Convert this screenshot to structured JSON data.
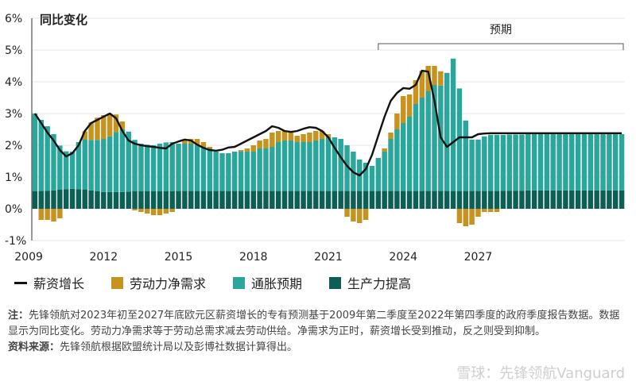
{
  "chart_data": {
    "type": "bar",
    "ylabel": "同比变化",
    "forecast_label": "预期",
    "ylim": [
      -1,
      6
    ],
    "yticks": [
      "6%",
      "5%",
      "4%",
      "3%",
      "2%",
      "1%",
      "0%",
      "-1%"
    ],
    "xticks": [
      "2009",
      "2012",
      "2015",
      "2018",
      "2021",
      "2024",
      "2027"
    ],
    "x_start": "2009Q2",
    "legend": {
      "wage": "薪资增长",
      "labor": "劳动力净需求",
      "infl": "通胀预期",
      "prod": "生产力提高"
    },
    "colors": {
      "prod": "#0b5f54",
      "infl": "#2aa79c",
      "labor": "#c8921f",
      "wage": "#111111"
    },
    "series": {
      "prod": [
        0.55,
        0.56,
        0.57,
        0.58,
        0.6,
        0.62,
        0.63,
        0.62,
        0.61,
        0.58,
        0.55,
        0.53,
        0.53,
        0.53,
        0.53,
        0.54,
        0.55,
        0.55,
        0.55,
        0.55,
        0.55,
        0.55,
        0.55,
        0.56,
        0.56,
        0.56,
        0.56,
        0.56,
        0.56,
        0.56,
        0.56,
        0.56,
        0.56,
        0.56,
        0.56,
        0.56,
        0.56,
        0.56,
        0.56,
        0.56,
        0.56,
        0.56,
        0.56,
        0.56,
        0.56,
        0.56,
        0.56,
        0.56,
        0.56,
        0.56,
        0.56,
        0.56,
        0.56,
        0.56,
        0.56,
        0.56,
        0.56,
        0.56,
        0.56,
        0.56,
        0.56,
        0.56,
        0.56,
        0.56,
        0.56,
        0.56,
        0.56,
        0.56,
        0.56,
        0.56,
        0.56,
        0.56,
        0.56,
        0.56,
        0.56,
        0.57,
        0.57,
        0.57,
        0.57,
        0.58,
        0.58,
        0.58,
        0.58,
        0.58,
        0.58,
        0.58,
        0.58,
        0.58,
        0.58,
        0.58,
        0.58,
        0.58,
        0.58,
        0.58,
        0.58
      ],
      "infl": [
        2.45,
        2.24,
        2.03,
        1.77,
        1.39,
        1.19,
        1.17,
        1.48,
        1.58,
        1.59,
        1.62,
        1.67,
        1.75,
        1.89,
        1.97,
        1.89,
        1.62,
        1.5,
        1.47,
        1.45,
        1.5,
        1.54,
        1.55,
        1.49,
        1.49,
        1.49,
        1.44,
        1.39,
        1.34,
        1.24,
        1.19,
        1.19,
        1.24,
        1.24,
        1.24,
        1.24,
        1.34,
        1.34,
        1.39,
        1.54,
        1.59,
        1.59,
        1.54,
        1.54,
        1.54,
        1.59,
        1.64,
        1.69,
        1.69,
        1.64,
        1.44,
        1.24,
        0.99,
        0.89,
        0.79,
        1.04,
        1.24,
        1.64,
        1.94,
        2.14,
        2.34,
        2.74,
        2.94,
        3.14,
        3.34,
        3.32,
        3.72,
        4.17,
        3.23,
        2.22,
        1.62,
        1.62,
        1.72,
        1.77,
        1.77,
        1.76,
        1.77,
        1.77,
        1.77,
        1.77,
        1.77,
        1.77,
        1.77,
        1.77,
        1.77,
        1.77,
        1.77,
        1.77,
        1.77,
        1.77,
        1.77,
        1.77,
        1.77,
        1.77,
        1.77
      ],
      "labor": [
        0,
        -0.35,
        -0.35,
        -0.4,
        -0.3,
        0,
        0,
        0,
        0.25,
        0.55,
        0.7,
        0.75,
        0.7,
        0.55,
        0.25,
        0,
        -0.05,
        -0.1,
        -0.15,
        -0.2,
        -0.2,
        -0.15,
        -0.1,
        0,
        0.1,
        0.15,
        0.2,
        0.15,
        0.05,
        0,
        0,
        0,
        0,
        0.05,
        0.1,
        0.2,
        0.25,
        0.3,
        0.45,
        0.35,
        0.3,
        0.25,
        0.2,
        0.25,
        0.3,
        0.3,
        0.25,
        0.1,
        0,
        0,
        -0.25,
        -0.4,
        -0.45,
        -0.35,
        0,
        0,
        0.1,
        0.2,
        0.5,
        0.85,
        0.7,
        0.75,
        0.85,
        0.8,
        0.6,
        0.45,
        0,
        0,
        -0.45,
        -0.55,
        -0.5,
        -0.25,
        -0.1,
        -0.1,
        -0.1,
        0,
        0,
        0,
        0,
        0,
        0,
        0,
        0,
        0,
        0,
        0,
        0,
        0,
        0,
        0,
        0,
        0,
        0,
        0,
        0
      ],
      "wage": [
        3.0,
        2.7,
        2.4,
        2.15,
        1.85,
        1.65,
        1.75,
        2.0,
        2.45,
        2.7,
        2.8,
        2.9,
        3.0,
        2.85,
        2.45,
        2.15,
        2.05,
        2.0,
        1.97,
        1.95,
        1.92,
        1.9,
        2.05,
        2.12,
        2.18,
        2.15,
        2.02,
        1.92,
        1.85,
        1.83,
        1.86,
        1.93,
        1.95,
        2.05,
        2.15,
        2.25,
        2.35,
        2.45,
        2.6,
        2.55,
        2.45,
        2.42,
        2.45,
        2.52,
        2.57,
        2.55,
        2.45,
        2.25,
        1.92,
        1.62,
        1.35,
        1.15,
        1.05,
        1.25,
        1.7,
        2.3,
        2.9,
        3.4,
        3.65,
        3.8,
        3.78,
        3.9,
        4.35,
        4.32,
        3.4,
        2.25,
        1.95,
        2.1,
        2.25,
        2.25,
        2.25,
        2.35,
        2.37,
        2.38,
        2.38,
        2.38,
        2.38,
        2.38,
        2.38,
        2.38,
        2.38,
        2.38,
        2.38,
        2.38,
        2.38,
        2.38,
        2.38,
        2.38,
        2.38,
        2.38,
        2.38,
        2.38,
        2.38,
        2.38,
        2.38
      ]
    }
  },
  "note": {
    "label": "注：",
    "text": "先锋领航对2023年初至2027年底欧元区薪资增长的专有预测基于2009年第二季度至2022年第四季度的政府季度报告数据。数据显示为同比变化。劳动力净需求等于劳动总需求减去劳动供给。净需求为正时，薪资增长受到推动，反之则受到抑制。"
  },
  "source": {
    "label": "资料来源：",
    "text": "先锋领航根据欧盟统计局以及彭博社数据计算得出。"
  },
  "watermark": "雪球：先锋领航Vanguard"
}
